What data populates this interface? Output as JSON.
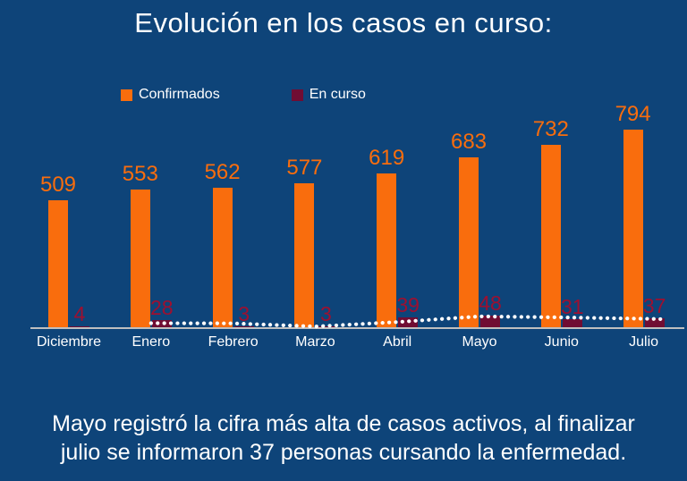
{
  "title": "Evolución en los casos en curso:",
  "legend": [
    {
      "label": "Confirmados",
      "color": "#F96D0D"
    },
    {
      "label": "En curso",
      "color": "#700D33"
    }
  ],
  "chart_data": {
    "type": "bar",
    "title": "Evolución en los casos en curso:",
    "categories": [
      "Diciembre",
      "Enero",
      "Febrero",
      "Marzo",
      "Abril",
      "Mayo",
      "Junio",
      "Julio"
    ],
    "series": [
      {
        "name": "Confirmados",
        "color": "#F96D0D",
        "label_color": "#F96D0D",
        "values": [
          509,
          553,
          562,
          577,
          619,
          683,
          732,
          794
        ]
      },
      {
        "name": "En curso",
        "color": "#700D33",
        "label_color": "#9E1030",
        "values": [
          4,
          28,
          3,
          3,
          39,
          48,
          31,
          37
        ]
      }
    ],
    "trendline": {
      "series": "En curso",
      "type": "moving_average_2",
      "categories": [
        "Enero",
        "Febrero",
        "Marzo",
        "Abril",
        "Mayo",
        "Junio",
        "Julio"
      ],
      "values": [
        16,
        15.5,
        3,
        21,
        43.5,
        39.5,
        34
      ],
      "color": "#FFFFFF",
      "style": "dotted"
    },
    "ylim": [
      0,
      850
    ],
    "grid": false,
    "legend_position": "top",
    "data_labels": true
  },
  "caption": "Mayo registró la cifra más alta de casos activos, al finalizar julio se informaron 37 personas cursando la enfermedad.",
  "colors": {
    "background": "#0E4479",
    "title_text": "#FFFFFF",
    "axis_line": "#BFBFBF",
    "axis_label_text": "#FFFFFF",
    "confirmados": "#F96D0D",
    "en_curso_bar": "#700D33",
    "en_curso_label": "#9E1030",
    "trendline": "#FFFFFF"
  }
}
